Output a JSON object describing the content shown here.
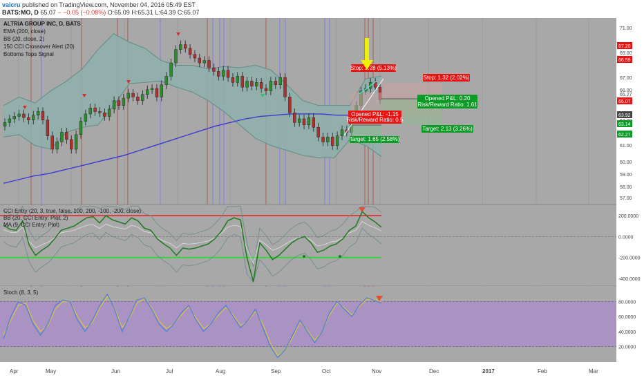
{
  "header": {
    "user": "vaicru",
    "published": "published on TradingView.com, November 04, 2016 05:49 EST",
    "symbol": "BATS:MO, D",
    "last": "65.07",
    "change": "− −0.05 (−0.08%)",
    "open": "O:65.09",
    "high": "H:65.31",
    "low": "L:64.39",
    "close": "C:65.07"
  },
  "colors": {
    "background": "#a8a8a8",
    "grid": "#9c9c9c",
    "bollinger_fill": "#8fb0ab",
    "bollinger_line": "#5f8d86",
    "ema": "#3a3ad0",
    "candle_up": "#2e8b2e",
    "candle_down": "#b03030",
    "cci_line": "#1d7a1d",
    "stoch_k": "#4a80d6",
    "stoch_d": "#e0c040",
    "stoch_band": "#a98fc7",
    "arrow": "#f0f000",
    "stop_box": "#e81414",
    "target_box": "#0e9a26",
    "price_label": "#e81414",
    "green_label": "#0e9a26"
  },
  "legend": {
    "title": "ALTRIA GROUP INC, D, BATS",
    "items": [
      "EMA (200, close)",
      "BB (20, close, 2)",
      "150 CCI Crossover Alert (20)",
      "Bottoms Tops Signal"
    ]
  },
  "cci_legend": [
    "CCI Entry (20, 3, true, false, 100, 200, -100, -200, close)",
    "BB (20, CCI Entry: Plot, 2)",
    "MA (9, CCI Entry: Plot)"
  ],
  "stoch_legend": "Stoch (8, 3, 5)",
  "annotations": {
    "stop1": "Stop: 3.28 (5.13%)",
    "stop2": "Stop: 1.32 (2.02%)",
    "opened_pl1": "Opened P&L: -1.15",
    "rr1": "Risk/Reward Ratio: 0.5",
    "target1": "Target: 1.65 (2.58%)",
    "opened_pl2": "Opened P&L: 0.20",
    "rr2": "Risk/Reward Ratio: 1.61",
    "target2": "Target: 2.13 (3.26%)"
  },
  "chart_data": [
    {
      "type": "candlestick",
      "title": "ALTRIA GROUP INC, D, BATS",
      "x_ticks": [
        "Apr",
        "May",
        "Jun",
        "Jul",
        "Aug",
        "Sep",
        "Oct",
        "Nov",
        "Dec",
        "2017",
        "Feb",
        "Mar"
      ],
      "y_ticks": [
        "71.00",
        "69.00",
        "67.00",
        "65.00",
        "63.00",
        "61.00",
        "60.00",
        "59.00",
        "58.00",
        "57.00"
      ],
      "ylim": [
        56.5,
        71.5
      ],
      "price_labels": [
        {
          "value": "67.20",
          "style": "red"
        },
        {
          "value": "66.59",
          "style": "red"
        },
        {
          "value": "65.07",
          "style": "red"
        },
        {
          "value": "63.92",
          "style": "dark"
        },
        {
          "value": "63.14",
          "style": "green"
        },
        {
          "value": "62.27",
          "style": "green"
        }
      ],
      "axis_labels_visible": [
        "71.00",
        "69.00",
        "67.00",
        "66.00",
        "65.27",
        "63.00",
        "61.00",
        "60.00",
        "59.00",
        "58.00",
        "57.00"
      ],
      "series": [
        {
          "name": "MO",
          "close": [
            63.2,
            63.5,
            63.7,
            63.9,
            63.6,
            63.4,
            63.8,
            64.1,
            63.4,
            62.1,
            61.0,
            61.6,
            62.4,
            61.8,
            61.0,
            62.2,
            63.3,
            63.9,
            64.4,
            64.1,
            64.0,
            63.7,
            64.3,
            65.0,
            64.6,
            65.2,
            65.6,
            65.3,
            65.0,
            65.5,
            65.9,
            66.0,
            65.3,
            66.3,
            67.0,
            68.1,
            69.2,
            69.6,
            69.3,
            68.8,
            68.5,
            68.1,
            68.3,
            67.7,
            67.4,
            67.0,
            67.5,
            66.9,
            66.5,
            67.0,
            66.1,
            66.6,
            66.2,
            66.5,
            66.0,
            65.8,
            66.6,
            66.3,
            66.9,
            65.3,
            64.0,
            63.2,
            63.5,
            63.0,
            63.6,
            62.8,
            62.0,
            61.6,
            62.0,
            61.3,
            62.1,
            62.6,
            62.4,
            63.5,
            64.6,
            65.8,
            66.0,
            66.5,
            66.1,
            65.07
          ]
        },
        {
          "name": "EMA (200, close)",
          "values": [
            58.2,
            58.5,
            58.8,
            59.0,
            59.3,
            59.6,
            59.9,
            60.2,
            60.5,
            60.9,
            61.3,
            61.7,
            62.1,
            62.5,
            62.9,
            63.2,
            63.5,
            63.7,
            63.8,
            63.9,
            63.9,
            63.9,
            63.8,
            63.8,
            63.7,
            63.7
          ]
        },
        {
          "name": "BB (20, close, 2)",
          "upper": [
            64.6,
            65.3,
            64.8,
            65.8,
            66.6,
            67.6,
            69.2,
            70.5,
            69.8,
            69.3,
            68.3,
            67.9,
            67.9,
            67.6,
            67.8,
            67.7,
            67.9,
            67.5,
            66.3,
            65.0,
            64.6,
            64.6,
            64.6,
            66.8,
            67.0
          ],
          "lower": [
            62.0,
            62.2,
            61.3,
            61.0,
            62.4,
            62.8,
            63.0,
            64.6,
            66.4,
            66.5,
            66.6,
            66.1,
            65.7,
            65.0,
            64.1,
            63.0,
            61.9,
            61.3,
            60.9,
            60.5,
            60.3,
            60.3,
            61.8,
            61.3,
            60.4
          ]
        }
      ]
    },
    {
      "type": "line",
      "title": "CCI Entry (20, 3, true, false, 100, 200, -100, -200, close)",
      "y_ticks": [
        "200.0000",
        "0.0000",
        "-200.0000",
        "-400.0000"
      ],
      "ylim": [
        -460,
        300
      ],
      "levels": [
        200,
        -200
      ],
      "series": [
        {
          "name": "CCI Entry",
          "values": [
            110,
            70,
            60,
            150,
            -80,
            -180,
            -130,
            -90,
            -20,
            60,
            80,
            100,
            140,
            180,
            190,
            130,
            200,
            160,
            140,
            120,
            180,
            150,
            80,
            60,
            -20,
            -70,
            -110,
            -180,
            -110,
            -120,
            -110,
            -90,
            -70,
            -20,
            50,
            150,
            180,
            160,
            -200,
            -430,
            -60,
            -130,
            -220,
            -180,
            -120,
            -60,
            -20,
            0,
            -60,
            -150,
            -130,
            -90,
            -70,
            -20,
            60,
            100,
            240,
            180,
            140,
            90
          ]
        }
      ]
    },
    {
      "type": "line",
      "title": "Stoch (8, 3, 5)",
      "y_ticks": [
        "80.0000",
        "60.0000",
        "40.0000",
        "20.0000"
      ],
      "ylim": [
        0,
        100
      ],
      "levels": [
        80,
        20
      ],
      "series": [
        {
          "name": "%K",
          "values": [
            30,
            60,
            80,
            75,
            50,
            35,
            50,
            75,
            82,
            80,
            55,
            40,
            55,
            75,
            90,
            70,
            40,
            60,
            82,
            85,
            70,
            50,
            40,
            50,
            65,
            75,
            55,
            40,
            50,
            65,
            75,
            60,
            45,
            55,
            70,
            45,
            20,
            5,
            15,
            35,
            55,
            40,
            25,
            40,
            65,
            80,
            70,
            60,
            75,
            85,
            82,
            78
          ]
        },
        {
          "name": "%D",
          "values": [
            35,
            55,
            75,
            78,
            55,
            40,
            48,
            70,
            80,
            80,
            60,
            45,
            52,
            72,
            87,
            72,
            45,
            58,
            78,
            84,
            72,
            54,
            44,
            50,
            62,
            73,
            58,
            44,
            50,
            62,
            72,
            62,
            48,
            54,
            67,
            50,
            25,
            8,
            14,
            32,
            52,
            42,
            28,
            40,
            62,
            78,
            72,
            62,
            73,
            83,
            83,
            80
          ]
        }
      ]
    }
  ]
}
